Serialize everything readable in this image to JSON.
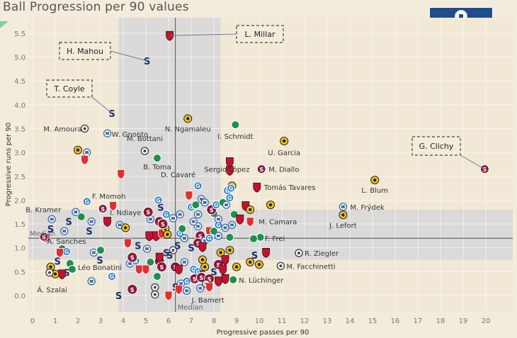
{
  "chart_data": {
    "type": "scatter",
    "title": "Ball Progression per 90 values",
    "xlabel": "Progressive passes per 90",
    "ylabel": "Progressive runs per 90",
    "xlim": [
      -0.3,
      21.2
    ],
    "ylim": [
      -0.35,
      5.75
    ],
    "xticks": [
      0,
      1,
      2,
      3,
      4,
      5,
      6,
      7,
      8,
      9,
      10,
      11,
      12,
      13,
      14,
      15,
      16,
      17,
      18,
      19,
      20
    ],
    "yticks": [
      0.0,
      0.5,
      1.0,
      1.5,
      2.0,
      2.5,
      3.0,
      3.5,
      4.0,
      4.5,
      5.0,
      5.5
    ],
    "grid": true,
    "median": {
      "x": 6.3,
      "y": 1.2,
      "label": "Median"
    },
    "bands": {
      "x_band": [
        3.8,
        8.3
      ],
      "y_band": [
        0.75,
        1.8
      ]
    },
    "team_colors": {
      "servette": "#8b1a3a",
      "young_boys": "#f2c21b",
      "basel": "#c8102e",
      "lausanne": "#1a2f6b",
      "stgallen": "#1f8f4e",
      "lugano": "#2b7fc4",
      "zurich": "#4a6fa5",
      "sion": "#e03030",
      "grasshoppers": "#3a6ea5",
      "luzern": "#8a8a8a"
    },
    "labeled_points": [
      {
        "name": "L. Millar",
        "x": 6.05,
        "y": 5.45,
        "team": "basel",
        "callout": true
      },
      {
        "name": "H. Mahou",
        "x": 5.05,
        "y": 4.92,
        "team": "lausanne",
        "callout": true
      },
      {
        "name": "T. Coyle",
        "x": 3.5,
        "y": 3.82,
        "team": "lausanne",
        "callout": true
      },
      {
        "name": "G. Clichy",
        "x": 19.95,
        "y": 2.65,
        "team": "servette",
        "callout": true
      },
      {
        "name": "M. Amoura",
        "x": 2.3,
        "y": 3.5,
        "team": "luzern"
      },
      {
        "name": "W. Gnonto",
        "x": 3.3,
        "y": 3.4,
        "team": "zurich"
      },
      {
        "name": "N. Ngamaleu",
        "x": 6.85,
        "y": 3.71,
        "team": "young_boys"
      },
      {
        "name": "I. Schmidt",
        "x": 8.95,
        "y": 3.58,
        "team": "stgallen"
      },
      {
        "name": "M. Bottani",
        "x": 4.95,
        "y": 3.03,
        "team": "luzern"
      },
      {
        "name": "B. Toma",
        "x": 5.5,
        "y": 2.88,
        "team": "stgallen"
      },
      {
        "name": "U. Garcia",
        "x": 11.1,
        "y": 3.24,
        "team": "young_boys"
      },
      {
        "name": "M. Diallo",
        "x": 10.1,
        "y": 2.65,
        "team": "servette"
      },
      {
        "name": "Sergio López",
        "x": 8.7,
        "y": 2.8,
        "team": "basel"
      },
      {
        "name": "L. Blum",
        "x": 15.1,
        "y": 2.42,
        "team": "young_boys"
      },
      {
        "name": "Tomás Tavares",
        "x": 9.9,
        "y": 2.27,
        "team": "basel"
      },
      {
        "name": "D. Cavaré",
        "x": 7.3,
        "y": 2.3,
        "team": "lugano"
      },
      {
        "name": "F. Momoh",
        "x": 3.55,
        "y": 1.88,
        "team": "sion"
      },
      {
        "name": "M. Frýdek",
        "x": 13.7,
        "y": 1.86,
        "team": "grasshoppers"
      },
      {
        "name": "J. Lefort",
        "x": 13.7,
        "y": 1.69,
        "team": "young_boys"
      },
      {
        "name": "B. Kramer",
        "x": 0.85,
        "y": 1.6,
        "team": "zurich"
      },
      {
        "name": "I. Ndiaye",
        "x": 3.1,
        "y": 1.82,
        "team": "servette"
      },
      {
        "name": "M. Camara",
        "x": 9.6,
        "y": 1.55,
        "team": "sion"
      },
      {
        "name": "A. Sanches",
        "x": 0.5,
        "y": 1.23,
        "team": "servette"
      },
      {
        "name": "F. Frei",
        "x": 9.75,
        "y": 1.19,
        "team": "stgallen"
      },
      {
        "name": "R. Ziegler",
        "x": 11.75,
        "y": 0.89,
        "team": "luzern"
      },
      {
        "name": "M. Facchinetti",
        "x": 10.95,
        "y": 0.62,
        "team": "luzern"
      },
      {
        "name": "Léo Bonatini",
        "x": 2.97,
        "y": 0.74,
        "team": "lausanne"
      },
      {
        "name": "N. Lüchinger",
        "x": 8.85,
        "y": 0.33,
        "team": "stgallen"
      },
      {
        "name": "Á. Szalai",
        "x": 1.3,
        "y": 0.45,
        "team": "basel"
      },
      {
        "name": "J. Bamert",
        "x": 7.8,
        "y": 0.18,
        "team": "sion"
      }
    ],
    "other_points": [
      {
        "x": 1.0,
        "y": 0.45,
        "team": "young_boys"
      },
      {
        "x": 2.0,
        "y": 3.05,
        "team": "young_boys"
      },
      {
        "x": 2.4,
        "y": 3.0,
        "team": "grasshoppers"
      },
      {
        "x": 2.3,
        "y": 2.85,
        "team": "sion"
      },
      {
        "x": 3.9,
        "y": 2.55,
        "team": "sion"
      },
      {
        "x": 2.4,
        "y": 1.97,
        "team": "lugano"
      },
      {
        "x": 1.9,
        "y": 1.75,
        "team": "grasshoppers"
      },
      {
        "x": 2.15,
        "y": 1.65,
        "team": "stgallen"
      },
      {
        "x": 1.6,
        "y": 1.55,
        "team": "lausanne"
      },
      {
        "x": 2.6,
        "y": 1.55,
        "team": "zurich"
      },
      {
        "x": 0.8,
        "y": 1.4,
        "team": "lausanne"
      },
      {
        "x": 1.4,
        "y": 1.35,
        "team": "zurich"
      },
      {
        "x": 2.5,
        "y": 1.35,
        "team": "lausanne"
      },
      {
        "x": 3.3,
        "y": 1.55,
        "team": "basel"
      },
      {
        "x": 3.85,
        "y": 1.48,
        "team": "grasshoppers"
      },
      {
        "x": 4.1,
        "y": 1.42,
        "team": "young_boys"
      },
      {
        "x": 0.55,
        "y": 1.22,
        "team": "servette"
      },
      {
        "x": 1.3,
        "y": 0.98,
        "team": "stgallen"
      },
      {
        "x": 1.5,
        "y": 0.92,
        "team": "lugano"
      },
      {
        "x": 1.2,
        "y": 0.9,
        "team": "sion"
      },
      {
        "x": 2.7,
        "y": 0.9,
        "team": "zurich"
      },
      {
        "x": 3.0,
        "y": 0.95,
        "team": "stgallen"
      },
      {
        "x": 1.1,
        "y": 0.72,
        "team": "lausanne"
      },
      {
        "x": 1.65,
        "y": 0.67,
        "team": "stgallen"
      },
      {
        "x": 1.75,
        "y": 0.55,
        "team": "stgallen"
      },
      {
        "x": 0.8,
        "y": 0.6,
        "team": "young_boys"
      },
      {
        "x": 0.75,
        "y": 0.48,
        "team": "luzern"
      },
      {
        "x": 1.5,
        "y": 0.48,
        "team": "lausanne"
      },
      {
        "x": 2.6,
        "y": 0.3,
        "team": "grasshoppers"
      },
      {
        "x": 3.5,
        "y": 0.4,
        "team": "lugano"
      },
      {
        "x": 3.8,
        "y": 0.0,
        "team": "lausanne"
      },
      {
        "x": 4.4,
        "y": 0.13,
        "team": "servette"
      },
      {
        "x": 5.4,
        "y": 0.17,
        "team": "luzern"
      },
      {
        "x": 5.4,
        "y": 0.02,
        "team": "luzern"
      },
      {
        "x": 4.7,
        "y": 0.55,
        "team": "sion"
      },
      {
        "x": 5.0,
        "y": 0.55,
        "team": "sion"
      },
      {
        "x": 4.3,
        "y": 0.67,
        "team": "zurich"
      },
      {
        "x": 4.55,
        "y": 0.72,
        "team": "lugano"
      },
      {
        "x": 4.2,
        "y": 1.1,
        "team": "sion"
      },
      {
        "x": 4.65,
        "y": 1.05,
        "team": "lausanne"
      },
      {
        "x": 5.05,
        "y": 0.98,
        "team": "zurich"
      },
      {
        "x": 4.4,
        "y": 0.8,
        "team": "servette"
      },
      {
        "x": 5.15,
        "y": 1.25,
        "team": "basel"
      },
      {
        "x": 5.45,
        "y": 1.25,
        "team": "basel"
      },
      {
        "x": 5.7,
        "y": 1.3,
        "team": "sion"
      },
      {
        "x": 5.2,
        "y": 0.7,
        "team": "stgallen"
      },
      {
        "x": 5.6,
        "y": 0.72,
        "team": "servette"
      },
      {
        "x": 5.7,
        "y": 0.6,
        "team": "servette"
      },
      {
        "x": 5.6,
        "y": 0.8,
        "team": "basel"
      },
      {
        "x": 5.9,
        "y": 0.9,
        "team": "lausanne"
      },
      {
        "x": 6.2,
        "y": 0.95,
        "team": "luzern"
      },
      {
        "x": 5.6,
        "y": 1.55,
        "team": "servette"
      },
      {
        "x": 5.85,
        "y": 1.4,
        "team": "young_boys"
      },
      {
        "x": 5.75,
        "y": 1.5,
        "team": "servette"
      },
      {
        "x": 5.2,
        "y": 1.6,
        "team": "grasshoppers"
      },
      {
        "x": 5.95,
        "y": 1.28,
        "team": "young_boys"
      },
      {
        "x": 5.1,
        "y": 1.75,
        "team": "servette"
      },
      {
        "x": 5.65,
        "y": 1.85,
        "team": "lausanne"
      },
      {
        "x": 5.55,
        "y": 2.0,
        "team": "lugano"
      },
      {
        "x": 5.9,
        "y": 1.7,
        "team": "lugano"
      },
      {
        "x": 6.2,
        "y": 1.62,
        "team": "zurich"
      },
      {
        "x": 6.5,
        "y": 1.3,
        "team": "lugano"
      },
      {
        "x": 6.7,
        "y": 1.2,
        "team": "grasshoppers"
      },
      {
        "x": 6.4,
        "y": 1.05,
        "team": "lausanne"
      },
      {
        "x": 6.5,
        "y": 1.7,
        "team": "zurich"
      },
      {
        "x": 6.6,
        "y": 1.4,
        "team": "stgallen"
      },
      {
        "x": 7.0,
        "y": 1.85,
        "team": "lugano"
      },
      {
        "x": 7.2,
        "y": 1.9,
        "team": "stgallen"
      },
      {
        "x": 7.3,
        "y": 1.7,
        "team": "grasshoppers"
      },
      {
        "x": 6.9,
        "y": 2.1,
        "team": "sion"
      },
      {
        "x": 7.45,
        "y": 2.02,
        "team": "zurich"
      },
      {
        "x": 7.6,
        "y": 1.95,
        "team": "grasshoppers"
      },
      {
        "x": 7.3,
        "y": 1.45,
        "team": "zurich"
      },
      {
        "x": 7.1,
        "y": 1.55,
        "team": "zurich"
      },
      {
        "x": 7.4,
        "y": 1.25,
        "team": "servette"
      },
      {
        "x": 7.3,
        "y": 1.1,
        "team": "servette"
      },
      {
        "x": 7.0,
        "y": 1.0,
        "team": "lausanne"
      },
      {
        "x": 7.6,
        "y": 1.15,
        "team": "zurich"
      },
      {
        "x": 7.8,
        "y": 1.35,
        "team": "sion"
      },
      {
        "x": 7.5,
        "y": 1.02,
        "team": "basel"
      },
      {
        "x": 7.8,
        "y": 1.2,
        "team": "lugano"
      },
      {
        "x": 8.2,
        "y": 1.48,
        "team": "lugano"
      },
      {
        "x": 8.0,
        "y": 1.35,
        "team": "stgallen"
      },
      {
        "x": 8.5,
        "y": 1.42,
        "team": "grasshoppers"
      },
      {
        "x": 8.8,
        "y": 1.48,
        "team": "grasshoppers"
      },
      {
        "x": 8.2,
        "y": 1.25,
        "team": "zurich"
      },
      {
        "x": 8.0,
        "y": 1.72,
        "team": "stgallen"
      },
      {
        "x": 8.2,
        "y": 1.6,
        "team": "zurich"
      },
      {
        "x": 7.9,
        "y": 1.8,
        "team": "servette"
      },
      {
        "x": 8.1,
        "y": 1.9,
        "team": "lugano"
      },
      {
        "x": 8.4,
        "y": 1.95,
        "team": "stgallen"
      },
      {
        "x": 8.7,
        "y": 2.05,
        "team": "lugano"
      },
      {
        "x": 8.55,
        "y": 1.9,
        "team": "zurich"
      },
      {
        "x": 8.8,
        "y": 2.3,
        "team": "young_boys"
      },
      {
        "x": 8.6,
        "y": 2.2,
        "team": "lugano"
      },
      {
        "x": 8.75,
        "y": 2.25,
        "team": "lugano"
      },
      {
        "x": 7.5,
        "y": 0.75,
        "team": "young_boys"
      },
      {
        "x": 7.6,
        "y": 0.6,
        "team": "young_boys"
      },
      {
        "x": 7.1,
        "y": 0.55,
        "team": "lugano"
      },
      {
        "x": 7.3,
        "y": 0.5,
        "team": "lugano"
      },
      {
        "x": 7.5,
        "y": 0.45,
        "team": "lausanne"
      },
      {
        "x": 7.15,
        "y": 0.35,
        "team": "servette"
      },
      {
        "x": 7.45,
        "y": 0.38,
        "team": "servette"
      },
      {
        "x": 7.8,
        "y": 0.35,
        "team": "servette"
      },
      {
        "x": 7.65,
        "y": 0.25,
        "team": "luzern"
      },
      {
        "x": 7.4,
        "y": 0.15,
        "team": "zurich"
      },
      {
        "x": 8.0,
        "y": 0.5,
        "team": "lausanne"
      },
      {
        "x": 8.2,
        "y": 0.3,
        "team": "basel"
      },
      {
        "x": 8.5,
        "y": 0.35,
        "team": "basel"
      },
      {
        "x": 8.2,
        "y": 0.65,
        "team": "servette"
      },
      {
        "x": 8.4,
        "y": 0.55,
        "team": "basel"
      },
      {
        "x": 6.8,
        "y": 0.3,
        "team": "lugano"
      },
      {
        "x": 6.55,
        "y": 0.25,
        "team": "zurich"
      },
      {
        "x": 6.3,
        "y": 0.18,
        "team": "lausanne"
      },
      {
        "x": 6.45,
        "y": 0.13,
        "team": "sion"
      },
      {
        "x": 6.0,
        "y": 0.0,
        "team": "sion"
      },
      {
        "x": 6.8,
        "y": 0.1,
        "team": "grasshoppers"
      },
      {
        "x": 5.5,
        "y": 0.4,
        "team": "stgallen"
      },
      {
        "x": 6.7,
        "y": 0.7,
        "team": "zurich"
      },
      {
        "x": 6.3,
        "y": 0.6,
        "team": "servette"
      },
      {
        "x": 6.45,
        "y": 0.55,
        "team": "basel"
      },
      {
        "x": 6.05,
        "y": 0.85,
        "team": "lausanne"
      },
      {
        "x": 8.3,
        "y": 0.9,
        "team": "young_boys"
      },
      {
        "x": 8.7,
        "y": 0.95,
        "team": "young_boys"
      },
      {
        "x": 8.5,
        "y": 0.75,
        "team": "basel"
      },
      {
        "x": 9.0,
        "y": 0.6,
        "team": "young_boys"
      },
      {
        "x": 9.8,
        "y": 0.85,
        "team": "lausanne"
      },
      {
        "x": 10.3,
        "y": 0.9,
        "team": "basel"
      },
      {
        "x": 9.6,
        "y": 0.7,
        "team": "young_boys"
      },
      {
        "x": 10.0,
        "y": 0.65,
        "team": "young_boys"
      },
      {
        "x": 8.9,
        "y": 1.7,
        "team": "stgallen"
      },
      {
        "x": 9.4,
        "y": 1.88,
        "team": "basel"
      },
      {
        "x": 9.6,
        "y": 1.8,
        "team": "young_boys"
      },
      {
        "x": 9.15,
        "y": 1.6,
        "team": "basel"
      },
      {
        "x": 10.05,
        "y": 1.22,
        "team": "stgallen"
      },
      {
        "x": 8.7,
        "y": 1.22,
        "team": "stgallen"
      },
      {
        "x": 10.5,
        "y": 1.9,
        "team": "young_boys"
      },
      {
        "x": 8.7,
        "y": 2.62,
        "team": "basel"
      }
    ]
  }
}
